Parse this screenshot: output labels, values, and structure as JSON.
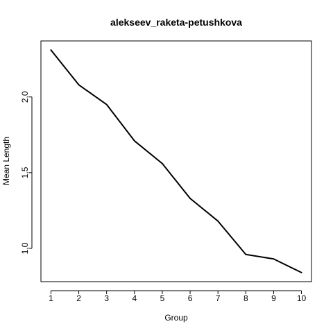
{
  "chart_data": {
    "type": "line",
    "title": "alekseev_raketa-petushkova",
    "xlabel": "Group",
    "ylabel": "Mean Length",
    "x": [
      1,
      2,
      3,
      4,
      5,
      6,
      7,
      8,
      9,
      10
    ],
    "x_ticks": [
      "1",
      "2",
      "3",
      "4",
      "5",
      "6",
      "7",
      "8",
      "9",
      "10"
    ],
    "y_ticks": [
      "1.0",
      "1.5",
      "2.0"
    ],
    "series": [
      {
        "values": [
          2.31,
          2.08,
          1.95,
          1.71,
          1.56,
          1.33,
          1.18,
          0.96,
          0.93,
          0.84
        ],
        "color": "#000000"
      }
    ],
    "xlim": [
      0.64,
      10.36
    ],
    "ylim": [
      0.78,
      2.37
    ],
    "grid": false,
    "legend": "none"
  }
}
